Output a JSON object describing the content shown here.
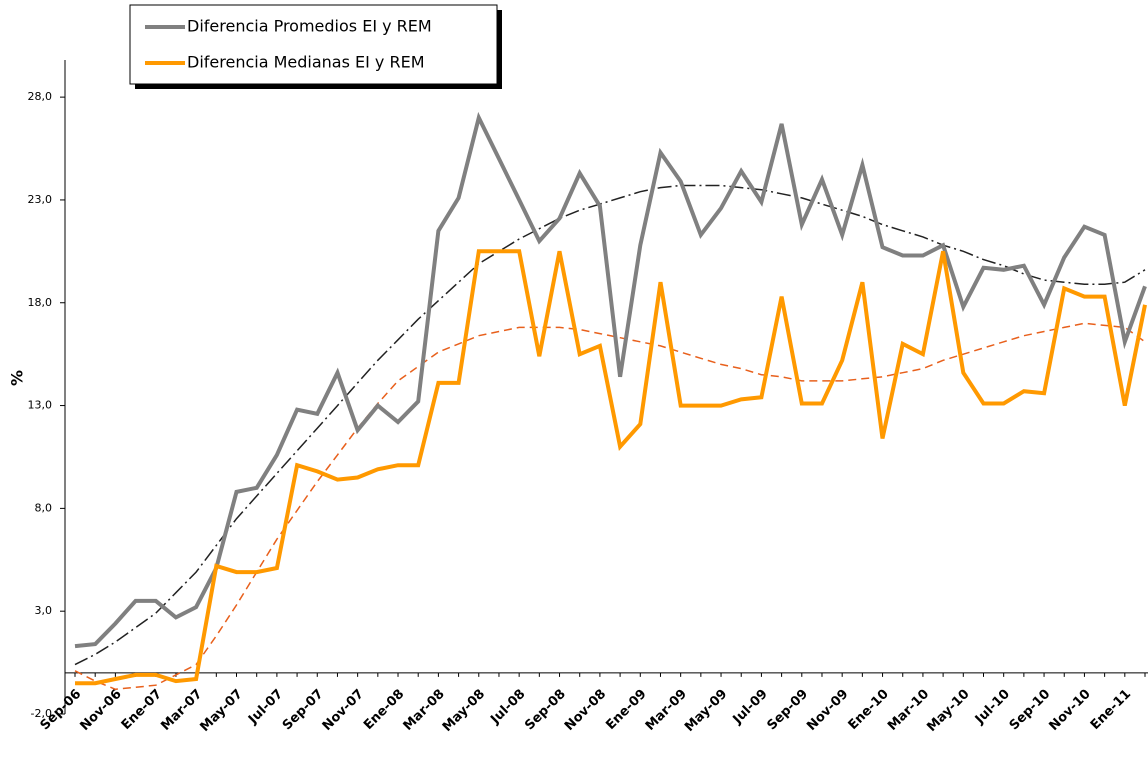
{
  "chart_data": {
    "type": "line",
    "y_label": "%",
    "categories": [
      "Sep-06",
      null,
      "Nov-06",
      null,
      "Ene-07",
      null,
      "Mar-07",
      null,
      "May-07",
      null,
      "Jul-07",
      null,
      "Sep-07",
      null,
      "Nov-07",
      null,
      "Ene-08",
      null,
      "Mar-08",
      null,
      "May-08",
      null,
      "Jul-08",
      null,
      "Sep-08",
      null,
      "Nov-08",
      null,
      "Ene-09",
      null,
      "Mar-09",
      null,
      "May-09",
      null,
      "Jul-09",
      null,
      "Sep-09",
      null,
      "Nov-09",
      null,
      "Ene-10",
      null,
      "Mar-10",
      null,
      "May-10",
      null,
      "Jul-10",
      null,
      "Sep-10",
      null,
      "Nov-10",
      null,
      "Ene-11",
      null
    ],
    "series": [
      {
        "name": "Diferencia Promedios EI y REM",
        "color": "#808080",
        "values": [
          1.3,
          1.4,
          2.4,
          3.5,
          3.5,
          2.7,
          3.2,
          5.1,
          8.8,
          9.0,
          10.6,
          12.8,
          12.6,
          14.6,
          11.8,
          13.0,
          12.2,
          13.2,
          21.5,
          23.1,
          27.0,
          25.0,
          23.0,
          21.0,
          22.1,
          24.3,
          22.7,
          14.4,
          20.8,
          25.3,
          23.9,
          21.3,
          22.6,
          24.4,
          22.9,
          26.7,
          21.8,
          24.0,
          21.3,
          24.7,
          20.7,
          20.3,
          20.3,
          20.8,
          17.8,
          19.7,
          19.6,
          19.8,
          17.9,
          20.2,
          21.7,
          21.3,
          16.1,
          18.8
        ]
      },
      {
        "name": "Diferencia Medianas EI y REM",
        "color": "#ff9900",
        "values": [
          -0.5,
          -0.5,
          -0.3,
          -0.1,
          -0.1,
          -0.4,
          -0.3,
          5.2,
          4.9,
          4.9,
          5.1,
          10.1,
          9.8,
          9.4,
          9.5,
          9.9,
          10.1,
          10.1,
          14.1,
          14.1,
          20.5,
          20.5,
          20.5,
          15.4,
          20.5,
          15.5,
          15.9,
          11.0,
          12.1,
          19.0,
          13.0,
          13.0,
          13.0,
          13.3,
          13.4,
          18.3,
          13.1,
          13.1,
          15.2,
          19.0,
          11.4,
          16.0,
          15.5,
          20.5,
          14.6,
          13.1,
          13.1,
          13.7,
          13.6,
          18.7,
          18.3,
          18.3,
          13.0,
          17.9
        ]
      }
    ],
    "trend_lines": [
      {
        "color": "#222222",
        "dash": "dashdot",
        "values": [
          0.4,
          0.9,
          1.5,
          2.2,
          2.9,
          3.9,
          4.9,
          6.2,
          7.5,
          8.6,
          9.7,
          10.8,
          11.9,
          13.0,
          14.1,
          15.2,
          16.2,
          17.2,
          18.1,
          19.0,
          19.9,
          20.5,
          21.1,
          21.6,
          22.1,
          22.5,
          22.8,
          23.1,
          23.4,
          23.6,
          23.7,
          23.7,
          23.7,
          23.6,
          23.5,
          23.3,
          23.1,
          22.8,
          22.5,
          22.2,
          21.8,
          21.5,
          21.2,
          20.8,
          20.5,
          20.1,
          19.8,
          19.4,
          19.1,
          19.0,
          18.9,
          18.9,
          19.0,
          19.6
        ]
      },
      {
        "color": "#e8601c",
        "dash": "dashed",
        "values": [
          0.1,
          -0.4,
          -0.8,
          -0.7,
          -0.6,
          -0.1,
          0.4,
          1.8,
          3.3,
          4.9,
          6.5,
          7.9,
          9.3,
          10.6,
          11.9,
          13.1,
          14.2,
          14.9,
          15.6,
          16.0,
          16.4,
          16.6,
          16.8,
          16.8,
          16.8,
          16.7,
          16.5,
          16.3,
          16.1,
          15.9,
          15.6,
          15.3,
          15.0,
          14.8,
          14.5,
          14.4,
          14.2,
          14.2,
          14.2,
          14.3,
          14.4,
          14.6,
          14.8,
          15.2,
          15.5,
          15.8,
          16.1,
          16.4,
          16.6,
          16.8,
          17.0,
          16.9,
          16.8,
          16.1
        ]
      }
    ],
    "ylim": [
      -2,
      30
    ],
    "yticks": [
      {
        "value": -2,
        "label": "-2,0"
      },
      {
        "value": 3,
        "label": "3,0"
      },
      {
        "value": 8,
        "label": "8,0"
      },
      {
        "value": 13,
        "label": "13,0"
      },
      {
        "value": 18,
        "label": "18,0"
      },
      {
        "value": 23,
        "label": "23,0"
      },
      {
        "value": 28,
        "label": "28,0"
      }
    ],
    "grid": false,
    "legend": "top-left"
  }
}
